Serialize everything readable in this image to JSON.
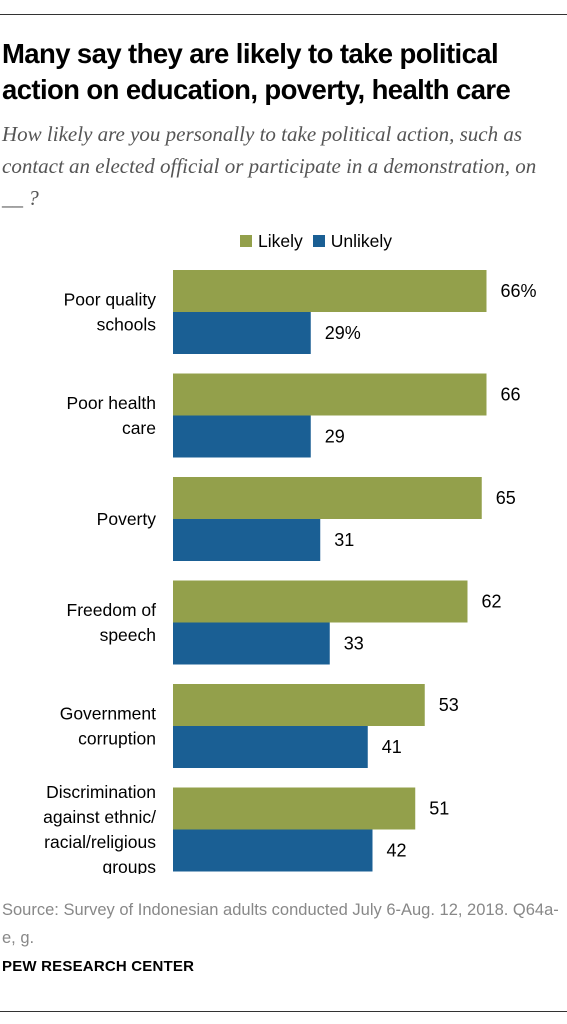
{
  "header": {
    "title": "Many say they are likely to take political action on education, poverty, health care",
    "subtitle": "How likely are you personally to take political action, such as contact an elected official or participate in a demonstration, on __ ?"
  },
  "footer": {
    "source": "Source: Survey of Indonesian adults conducted July 6-Aug. 12, 2018. Q64a-e, g.",
    "credit": "PEW RESEARCH CENTER"
  },
  "colors": {
    "likely": "#93a04b",
    "unlikely": "#1a5f94"
  },
  "chart_data": {
    "type": "bar",
    "orientation": "horizontal",
    "categories": [
      [
        "Poor quality",
        "schools"
      ],
      [
        "Poor health",
        "care"
      ],
      [
        "Poverty"
      ],
      [
        "Freedom of",
        "speech"
      ],
      [
        "Government",
        "corruption"
      ],
      [
        "Discrimination",
        "against ethnic/",
        "racial/religious",
        "groups"
      ]
    ],
    "series": [
      {
        "name": "Likely",
        "values": [
          66,
          66,
          65,
          62,
          53,
          51
        ],
        "labels": [
          "66%",
          "66",
          "65",
          "62",
          "53",
          "51"
        ]
      },
      {
        "name": "Unlikely",
        "values": [
          29,
          29,
          31,
          33,
          41,
          42
        ],
        "labels": [
          "29%",
          "29",
          "31",
          "33",
          "41",
          "42"
        ]
      }
    ],
    "xlim": [
      0,
      100
    ],
    "unit": "%",
    "grid": false,
    "legend": "top"
  }
}
